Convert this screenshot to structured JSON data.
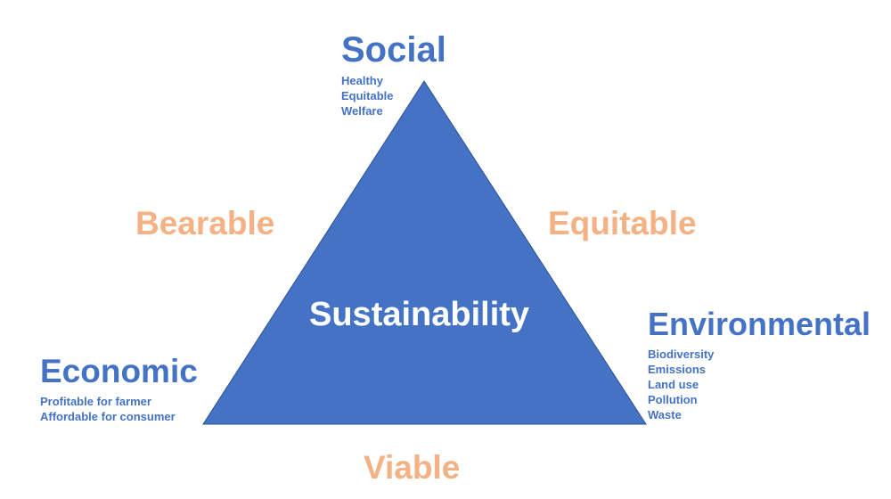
{
  "diagram": {
    "center_label": "Sustainability",
    "colors": {
      "triangle_fill": "#4472c4",
      "pillar_text": "#4472c4",
      "edge_text": "#f4b183",
      "center_text": "#ffffff"
    },
    "pillars": {
      "social": {
        "title": "Social",
        "items": [
          "Healthy",
          "Equitable",
          "Welfare"
        ]
      },
      "economic": {
        "title": "Economic",
        "items": [
          "Profitable for farmer",
          "Affordable for consumer"
        ]
      },
      "environmental": {
        "title": "Environmental",
        "items": [
          "Biodiversity",
          "Emissions",
          "Land use",
          "Pollution",
          "Waste"
        ]
      }
    },
    "edges": {
      "left": "Bearable",
      "right": "Equitable",
      "bottom": "Viable"
    }
  }
}
